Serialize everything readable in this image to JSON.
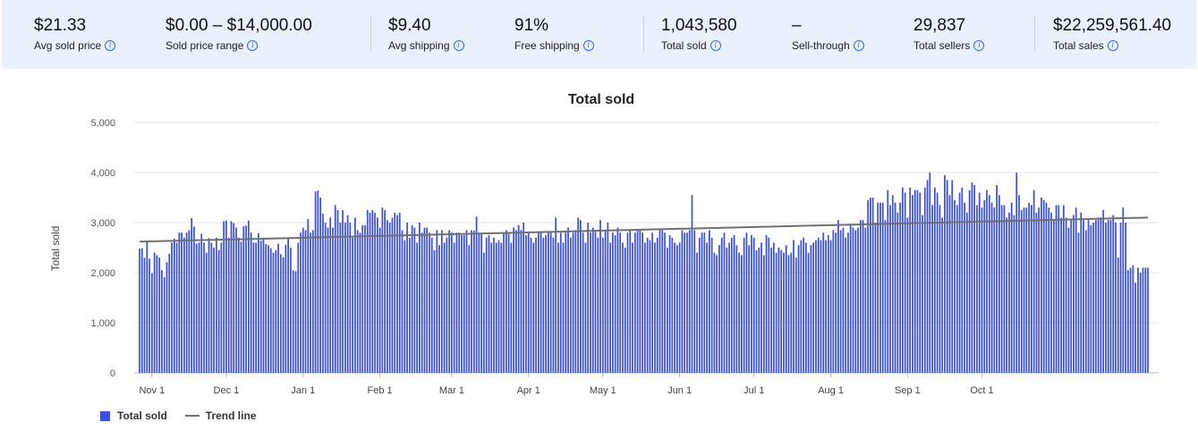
{
  "stats": [
    {
      "value": "$21.33",
      "label": "Avg sold price"
    },
    {
      "value": "$0.00 – $14,000.00",
      "label": "Sold price range"
    },
    {
      "value": "$9.40",
      "label": "Avg shipping"
    },
    {
      "value": "91%",
      "label": "Free shipping"
    },
    {
      "value": "1,043,580",
      "label": "Total sold"
    },
    {
      "value": "–",
      "label": "Sell-through"
    },
    {
      "value": "29,837",
      "label": "Total sellers"
    },
    {
      "value": "$22,259,561.40",
      "label": "Total sales"
    }
  ],
  "chart_data": {
    "type": "bar",
    "title": "Total sold",
    "ylabel": "Total sold",
    "ylim": [
      0,
      5000
    ],
    "yticks": [
      "0",
      "1,000",
      "2,000",
      "3,000",
      "4,000",
      "5,000"
    ],
    "x_tick_labels": [
      "Nov 1",
      "Dec 1",
      "Jan 1",
      "Feb 1",
      "Mar 1",
      "Apr 1",
      "May 1",
      "Jun 1",
      "Jul 1",
      "Aug 1",
      "Sep 1",
      "Oct 1"
    ],
    "x_start": "Oct 27",
    "x_end": "Oct 24",
    "grid": true,
    "bar_color": "#3b4fe0",
    "trend_color": "#707070",
    "legend_placement": "bottom-left",
    "series": [
      {
        "name": "Total sold",
        "values": [
          2480,
          2490,
          2300,
          2620,
          2280,
          1990,
          2400,
          2350,
          2300,
          2050,
          1910,
          2210,
          2380,
          2600,
          2680,
          2600,
          2800,
          2800,
          2700,
          2800,
          2850,
          3090,
          2920,
          2580,
          2600,
          2780,
          2600,
          2400,
          2690,
          2600,
          2500,
          2700,
          2450,
          2600,
          3030,
          3040,
          2700,
          3030,
          2990,
          2900,
          2700,
          2620,
          2930,
          2940,
          3040,
          2800,
          2600,
          2600,
          2790,
          2640,
          2700,
          2570,
          2550,
          2490,
          2400,
          2450,
          2580,
          2370,
          2310,
          2560,
          2700,
          2500,
          2050,
          2030,
          2600,
          2800,
          2900,
          2850,
          3070,
          2800,
          2850,
          3620,
          3640,
          3500,
          3180,
          3000,
          2900,
          3100,
          2900,
          3350,
          3250,
          3000,
          3250,
          3000,
          3150,
          3000,
          2700,
          3100,
          2850,
          2800,
          2950,
          2950,
          3250,
          3200,
          3250,
          3200,
          3100,
          2900,
          3300,
          3250,
          3050,
          3000,
          3100,
          3200,
          3150,
          3200,
          2850,
          2650,
          3000,
          2700,
          2950,
          2900,
          2600,
          3000,
          2800,
          2900,
          2900,
          2800,
          2700,
          2450,
          2850,
          2550,
          2850,
          2600,
          2700,
          2850,
          2800,
          2600,
          2800,
          2800,
          2750,
          2750,
          2850,
          2550,
          2850,
          2840,
          3120,
          2800,
          2800,
          2400,
          2700,
          2750,
          2600,
          2700,
          2600,
          2650,
          2600,
          2800,
          2850,
          2800,
          2600,
          2900,
          2850,
          2950,
          2850,
          3000,
          2750,
          2800,
          2700,
          2600,
          2700,
          2800,
          2800,
          2700,
          2750,
          2800,
          2800,
          2700,
          3100,
          2600,
          2800,
          2600,
          2800,
          2900,
          2700,
          2800,
          2850,
          3100,
          3050,
          2800,
          2600,
          3000,
          2800,
          2900,
          2850,
          2700,
          3050,
          2700,
          2850,
          3000,
          2600,
          2800,
          2750,
          2900,
          2800,
          2600,
          2500,
          2800,
          2850,
          2600,
          2800,
          2850,
          2850,
          2800,
          2600,
          2700,
          2650,
          2800,
          2600,
          2700,
          2850,
          2850,
          2800,
          2500,
          2750,
          2700,
          2600,
          2550,
          2600,
          2850,
          2800,
          2800,
          2850,
          3550,
          2850,
          2400,
          2700,
          2800,
          2800,
          2600,
          2850,
          2700,
          2400,
          2350,
          2550,
          2700,
          2800,
          2500,
          2600,
          2700,
          2750,
          2550,
          2400,
          2350,
          2700,
          2800,
          2550,
          2750,
          2700,
          2450,
          2500,
          2600,
          2350,
          2750,
          2700,
          2500,
          2600,
          2400,
          2500,
          2450,
          2400,
          2550,
          2350,
          2400,
          2650,
          2300,
          2550,
          2650,
          2700,
          2600,
          2400,
          2550,
          2600,
          2650,
          2700,
          2650,
          2800,
          2650,
          2750,
          2650,
          2850,
          2800,
          3050,
          2850,
          2900,
          2700,
          2800,
          2950,
          2900,
          2850,
          2900,
          3050,
          3050,
          2900,
          3450,
          3500,
          3500,
          3000,
          3400,
          3400,
          3400,
          3050,
          3650,
          3350,
          3550,
          3400,
          3200,
          3400,
          3700,
          3600,
          3100,
          3700,
          3550,
          3650,
          3650,
          3600,
          3150,
          3700,
          3850,
          4000,
          3350,
          3700,
          3600,
          3350,
          3100,
          3950,
          3850,
          3550,
          3850,
          3450,
          3350,
          3600,
          3700,
          3400,
          3200,
          3650,
          3800,
          3750,
          3350,
          3600,
          3300,
          3450,
          3650,
          3550,
          3400,
          3300,
          3750,
          3550,
          3350,
          3350,
          3100,
          3200,
          3400,
          3150,
          4000,
          3550,
          3250,
          3300,
          3300,
          3400,
          3350,
          3650,
          3200,
          3300,
          3500,
          3450,
          3400,
          3300,
          3200,
          3050,
          3350,
          3350,
          3100,
          3350,
          3100,
          2900,
          3050,
          3150,
          3300,
          2800,
          3200,
          3050,
          2850,
          3050,
          2950,
          3000,
          3050,
          3100,
          3100,
          3250,
          3000,
          3050,
          3050,
          3150,
          3000,
          2300,
          3000,
          3300,
          3000,
          2050,
          2100,
          2150,
          1800,
          2100,
          2000,
          2100,
          2100,
          2100
        ]
      },
      {
        "name": "Trend line",
        "start": 2620,
        "end": 3100
      }
    ]
  }
}
